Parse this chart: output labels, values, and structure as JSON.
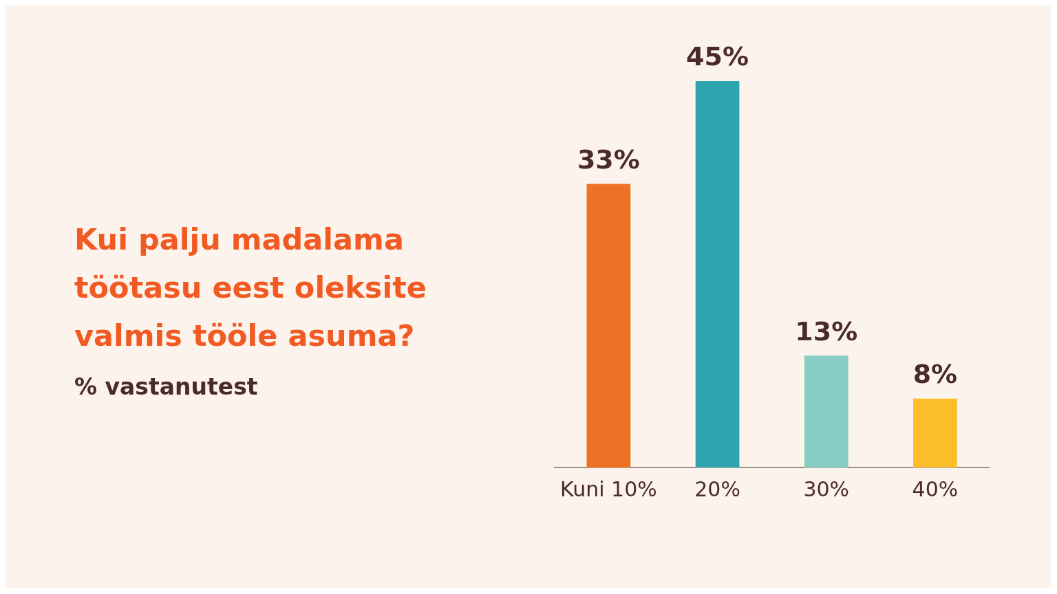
{
  "chart_data": {
    "type": "bar",
    "title": "Kui palju madalama töötasu eest oleksite valmis tööle asuma?",
    "subtitle": "% vastanutest",
    "categories": [
      "Kuni 10%",
      "20%",
      "30%",
      "40%"
    ],
    "values": [
      33,
      45,
      13,
      8
    ],
    "colors": [
      "#ef7125",
      "#2ea5ae",
      "#88cdc4",
      "#fbbd2a"
    ],
    "value_labels": [
      "33%",
      "45%",
      "13%",
      "8%"
    ],
    "tick_labels": "x",
    "grid": false,
    "legend": false
  }
}
